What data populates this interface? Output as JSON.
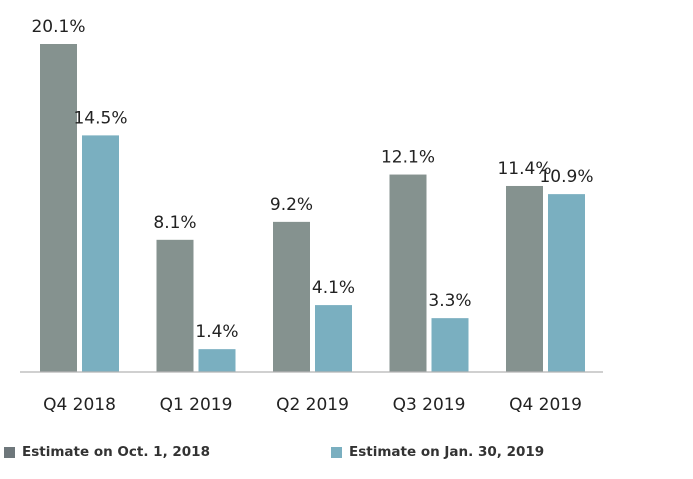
{
  "chart_data": {
    "type": "bar",
    "categories": [
      "Q4 2018",
      "Q1 2019",
      "Q2 2019",
      "Q3 2019",
      "Q4 2019"
    ],
    "series": [
      {
        "name": "Estimate on Oct. 1, 2018",
        "values": [
          20.1,
          8.1,
          9.2,
          12.1,
          11.4
        ],
        "labels": [
          "20.1%",
          "8.1%",
          "9.2%",
          "12.1%",
          "11.4%"
        ],
        "color": "#85928f"
      },
      {
        "name": "Estimate on Jan. 30, 2019",
        "values": [
          14.5,
          1.4,
          4.1,
          3.3,
          10.9
        ],
        "labels": [
          "14.5%",
          "1.4%",
          "4.1%",
          "3.3%",
          "10.9%"
        ],
        "color": "#7aafc0"
      }
    ],
    "ylim": [
      0,
      20.1
    ],
    "grid": false,
    "legend_position": "bottom",
    "title": "",
    "xlabel": "",
    "ylabel": ""
  }
}
